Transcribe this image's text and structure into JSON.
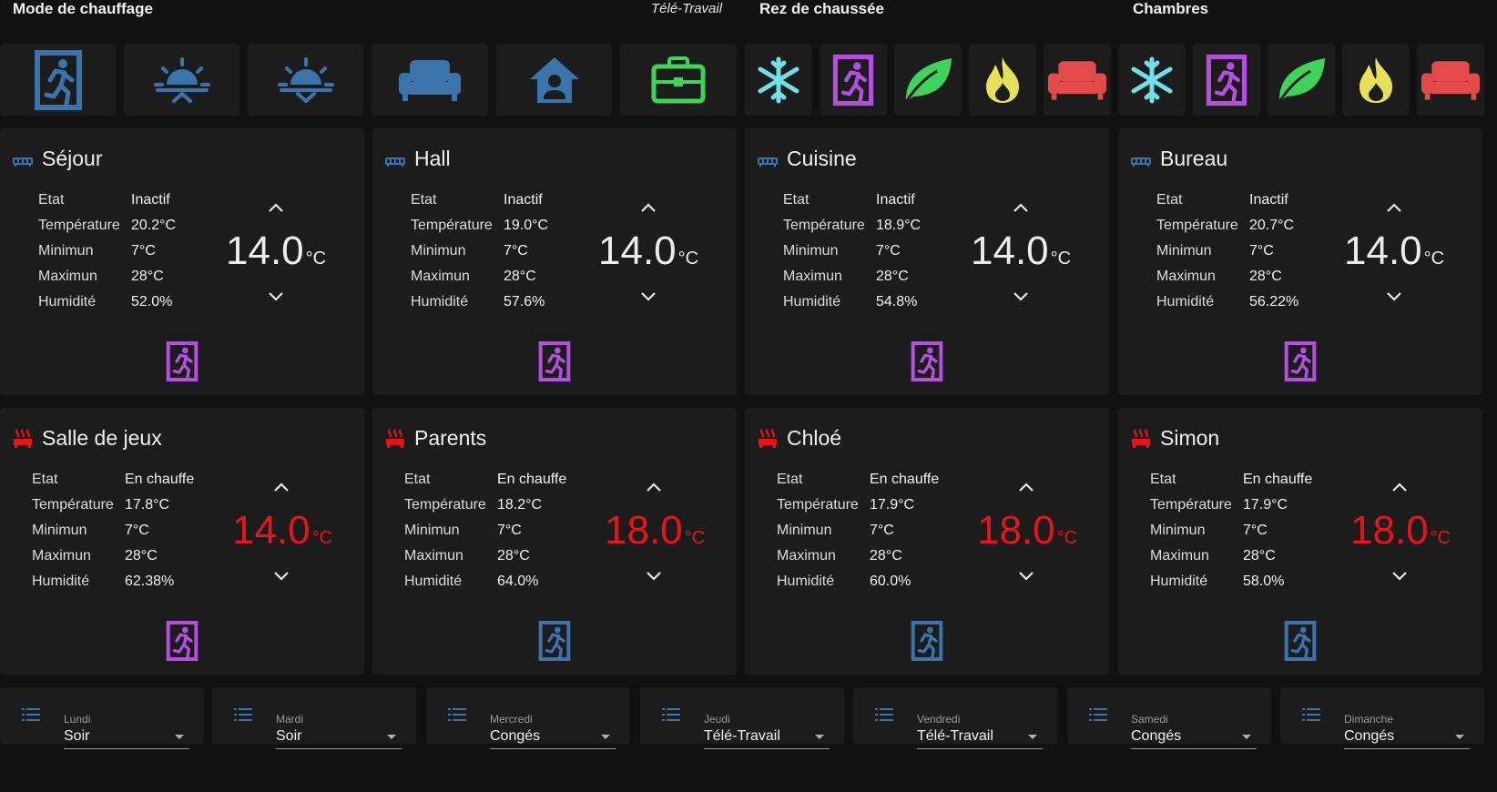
{
  "headers": {
    "mode": "Mode de chauffage",
    "mode_current": "Télé-Travail",
    "ground_floor": "Rez de chaussée",
    "bedrooms": "Chambres"
  },
  "mode_buttons": [
    {
      "icon": "exit-run-icon",
      "color": "#3b74ab"
    },
    {
      "icon": "sunrise-icon",
      "color": "#3b74ab"
    },
    {
      "icon": "sunset-icon",
      "color": "#3b74ab"
    },
    {
      "icon": "sofa-icon",
      "color": "#3b74ab"
    },
    {
      "icon": "home-account-icon",
      "color": "#3b74ab"
    },
    {
      "icon": "briefcase-icon",
      "color": "#3fd35a"
    }
  ],
  "zone_buttons_colors": {
    "frost": "#6fe0e8",
    "away": "#b44fe0",
    "eco": "#3fd35a",
    "comfort": "#e6e05a",
    "sofa": "#e34b4b"
  },
  "rooms": [
    {
      "name": "Séjour",
      "state": "Inactif",
      "temperature": "20.2°C",
      "minimum": "7°C",
      "maximum": "28°C",
      "humidity": "52.0%",
      "setpoint": "14.0",
      "heating": false,
      "preset_color": "#b44fe0"
    },
    {
      "name": "Hall",
      "state": "Inactif",
      "temperature": "19.0°C",
      "minimum": "7°C",
      "maximum": "28°C",
      "humidity": "57.6%",
      "setpoint": "14.0",
      "heating": false,
      "preset_color": "#b44fe0"
    },
    {
      "name": "Cuisine",
      "state": "Inactif",
      "temperature": "18.9°C",
      "minimum": "7°C",
      "maximum": "28°C",
      "humidity": "54.8%",
      "setpoint": "14.0",
      "heating": false,
      "preset_color": "#b44fe0"
    },
    {
      "name": "Bureau",
      "state": "Inactif",
      "temperature": "20.7°C",
      "minimum": "7°C",
      "maximum": "28°C",
      "humidity": "56.22%",
      "setpoint": "14.0",
      "heating": false,
      "preset_color": "#b44fe0"
    },
    {
      "name": "Salle de jeux",
      "state": "En chauffe",
      "temperature": "17.8°C",
      "minimum": "7°C",
      "maximum": "28°C",
      "humidity": "62.38%",
      "setpoint": "14.0",
      "heating": true,
      "preset_color": "#b44fe0"
    },
    {
      "name": "Parents",
      "state": "En chauffe",
      "temperature": "18.2°C",
      "minimum": "7°C",
      "maximum": "28°C",
      "humidity": "64.0%",
      "setpoint": "18.0",
      "heating": true,
      "preset_color": "#3b74ab"
    },
    {
      "name": "Chloé",
      "state": "En chauffe",
      "temperature": "17.9°C",
      "minimum": "7°C",
      "maximum": "28°C",
      "humidity": "60.0%",
      "setpoint": "18.0",
      "heating": true,
      "preset_color": "#3b74ab"
    },
    {
      "name": "Simon",
      "state": "En chauffe",
      "temperature": "17.9°C",
      "minimum": "7°C",
      "maximum": "28°C",
      "humidity": "58.0%",
      "setpoint": "18.0",
      "heating": true,
      "preset_color": "#3b74ab"
    }
  ],
  "attribute_labels": {
    "state": "Etat",
    "temperature": "Température",
    "minimum": "Minimun",
    "maximum": "Maximun",
    "humidity": "Humidité",
    "unit": "°C"
  },
  "colors": {
    "idle_icon": "#3b74ab",
    "heat": "#e8141a"
  },
  "schedule": [
    {
      "day": "Lundi",
      "value": "Soir"
    },
    {
      "day": "Mardi",
      "value": "Soir"
    },
    {
      "day": "Mercredi",
      "value": "Congés"
    },
    {
      "day": "Jeudi",
      "value": "Télé-Travail"
    },
    {
      "day": "Vendredi",
      "value": "Télé-Travail"
    },
    {
      "day": "Samedi",
      "value": "Congés"
    },
    {
      "day": "Dimanche",
      "value": "Congés"
    }
  ]
}
